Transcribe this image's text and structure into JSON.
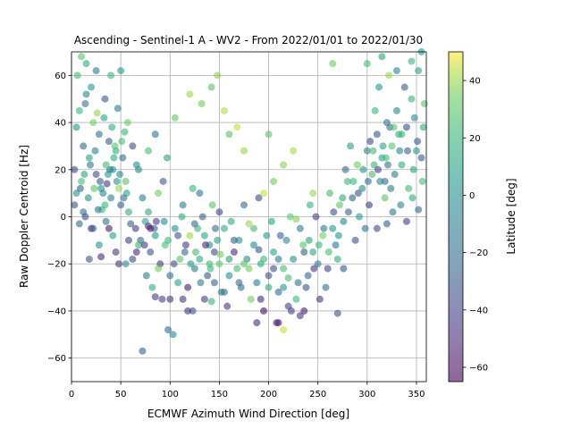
{
  "chart_data": {
    "type": "scatter",
    "title": "Ascending - Sentinel-1 A - WV2 - From 2022/01/01 to 2022/01/30",
    "xlabel": "ECMWF Azimuth Wind Direction [deg]",
    "ylabel": "Raw Doppler Centroid [Hz]",
    "xlim": [
      0,
      360
    ],
    "ylim": [
      -70,
      70
    ],
    "xticks": [
      0,
      50,
      100,
      150,
      200,
      250,
      300,
      350
    ],
    "yticks": [
      -60,
      -40,
      -20,
      0,
      20,
      40,
      60
    ],
    "grid": true,
    "colorbar": {
      "label": "Latitude [deg]",
      "range": [
        -65,
        50
      ],
      "ticks": [
        -60,
        -40,
        -20,
        0,
        20,
        40
      ],
      "colormap": "viridis"
    },
    "marker_alpha": 0.6,
    "points": [
      [
        5,
        38,
        5
      ],
      [
        12,
        30,
        -20
      ],
      [
        18,
        25,
        10
      ],
      [
        25,
        18,
        -35
      ],
      [
        30,
        12,
        0
      ],
      [
        35,
        22,
        25
      ],
      [
        40,
        8,
        -10
      ],
      [
        45,
        28,
        15
      ],
      [
        50,
        5,
        -25
      ],
      [
        55,
        15,
        30
      ],
      [
        8,
        45,
        20
      ],
      [
        15,
        52,
        -5
      ],
      [
        22,
        40,
        35
      ],
      [
        28,
        35,
        -15
      ],
      [
        33,
        42,
        10
      ],
      [
        38,
        32,
        -30
      ],
      [
        42,
        20,
        5
      ],
      [
        48,
        12,
        40
      ],
      [
        52,
        25,
        -20
      ],
      [
        58,
        2,
        15
      ],
      [
        3,
        20,
        -40
      ],
      [
        10,
        15,
        25
      ],
      [
        17,
        8,
        0
      ],
      [
        24,
        28,
        -10
      ],
      [
        31,
        3,
        20
      ],
      [
        36,
        14,
        -45
      ],
      [
        44,
        30,
        30
      ],
      [
        49,
        18,
        -5
      ],
      [
        56,
        10,
        10
      ],
      [
        60,
        -3,
        -25
      ],
      [
        6,
        60,
        25
      ],
      [
        14,
        48,
        -15
      ],
      [
        20,
        55,
        5
      ],
      [
        26,
        44,
        40
      ],
      [
        34,
        50,
        -30
      ],
      [
        41,
        38,
        15
      ],
      [
        47,
        46,
        -10
      ],
      [
        54,
        36,
        20
      ],
      [
        62,
        30,
        -35
      ],
      [
        66,
        22,
        0
      ],
      [
        65,
        -5,
        -40
      ],
      [
        70,
        -10,
        -20
      ],
      [
        75,
        -2,
        10
      ],
      [
        80,
        -15,
        -30
      ],
      [
        85,
        -8,
        5
      ],
      [
        90,
        -20,
        -45
      ],
      [
        95,
        -12,
        25
      ],
      [
        100,
        -25,
        -15
      ],
      [
        105,
        -5,
        0
      ],
      [
        110,
        -18,
        30
      ],
      [
        72,
        8,
        -10
      ],
      [
        78,
        2,
        15
      ],
      [
        84,
        -5,
        -25
      ],
      [
        88,
        10,
        35
      ],
      [
        94,
        -2,
        -5
      ],
      [
        98,
        -10,
        20
      ],
      [
        104,
        -20,
        -35
      ],
      [
        108,
        -28,
        10
      ],
      [
        115,
        -15,
        -20
      ],
      [
        120,
        -8,
        40
      ],
      [
        118,
        -30,
        -55
      ],
      [
        125,
        -22,
        -10
      ],
      [
        130,
        -18,
        15
      ],
      [
        135,
        -35,
        -40
      ],
      [
        140,
        -12,
        5
      ],
      [
        145,
        -28,
        -25
      ],
      [
        150,
        -20,
        30
      ],
      [
        155,
        -32,
        -15
      ],
      [
        160,
        -25,
        0
      ],
      [
        165,
        -15,
        -50
      ],
      [
        128,
        -5,
        20
      ],
      [
        138,
        -25,
        -30
      ],
      [
        148,
        -10,
        10
      ],
      [
        158,
        -38,
        -45
      ],
      [
        168,
        -22,
        25
      ],
      [
        172,
        -30,
        -20
      ],
      [
        178,
        -18,
        -5
      ],
      [
        182,
        -35,
        35
      ],
      [
        188,
        -28,
        -10
      ],
      [
        192,
        -20,
        15
      ],
      [
        195,
        -40,
        -60
      ],
      [
        200,
        -25,
        -35
      ],
      [
        205,
        -15,
        10
      ],
      [
        210,
        -32,
        -20
      ],
      [
        215,
        -22,
        25
      ],
      [
        220,
        -38,
        -40
      ],
      [
        225,
        -18,
        0
      ],
      [
        230,
        -28,
        -15
      ],
      [
        235,
        -12,
        30
      ],
      [
        240,
        -25,
        -25
      ],
      [
        198,
        -8,
        5
      ],
      [
        208,
        -45,
        -50
      ],
      [
        218,
        -10,
        -5
      ],
      [
        228,
        -35,
        20
      ],
      [
        238,
        -30,
        -30
      ],
      [
        245,
        -15,
        15
      ],
      [
        250,
        -20,
        -10
      ],
      [
        255,
        -8,
        35
      ],
      [
        260,
        -22,
        -40
      ],
      [
        265,
        -5,
        5
      ],
      [
        258,
        -30,
        -20
      ],
      [
        262,
        10,
        25
      ],
      [
        268,
        -12,
        -15
      ],
      [
        272,
        5,
        30
      ],
      [
        276,
        -2,
        -5
      ],
      [
        280,
        15,
        20
      ],
      [
        285,
        8,
        -25
      ],
      [
        290,
        22,
        35
      ],
      [
        295,
        12,
        0
      ],
      [
        300,
        28,
        -10
      ],
      [
        305,
        18,
        25
      ],
      [
        310,
        35,
        -30
      ],
      [
        315,
        25,
        10
      ],
      [
        320,
        40,
        -15
      ],
      [
        325,
        30,
        30
      ],
      [
        330,
        45,
        -5
      ],
      [
        335,
        22,
        15
      ],
      [
        340,
        38,
        -35
      ],
      [
        345,
        50,
        20
      ],
      [
        350,
        28,
        0
      ],
      [
        302,
        5,
        -40
      ],
      [
        308,
        45,
        20
      ],
      [
        312,
        55,
        5
      ],
      [
        318,
        15,
        -20
      ],
      [
        322,
        60,
        40
      ],
      [
        328,
        18,
        -10
      ],
      [
        332,
        35,
        15
      ],
      [
        338,
        55,
        -25
      ],
      [
        342,
        12,
        25
      ],
      [
        348,
        42,
        -5
      ],
      [
        352,
        62,
        10
      ],
      [
        355,
        25,
        -30
      ],
      [
        358,
        48,
        30
      ],
      [
        298,
        -5,
        -15
      ],
      [
        292,
        0,
        5
      ],
      [
        288,
        -10,
        -35
      ],
      [
        283,
        30,
        10
      ],
      [
        278,
        20,
        -20
      ],
      [
        270,
        -18,
        15
      ],
      [
        252,
        -35,
        -45
      ],
      [
        20,
        -5,
        -50
      ],
      [
        18,
        -18,
        -30
      ],
      [
        28,
        -12,
        5
      ],
      [
        35,
        -2,
        -20
      ],
      [
        42,
        -8,
        10
      ],
      [
        12,
        2,
        -15
      ],
      [
        55,
        -20,
        0
      ],
      [
        62,
        -18,
        -35
      ],
      [
        68,
        -12,
        20
      ],
      [
        76,
        -25,
        -10
      ],
      [
        82,
        -30,
        15
      ],
      [
        92,
        -35,
        -40
      ],
      [
        98,
        -48,
        -20
      ],
      [
        103,
        -50,
        -5
      ],
      [
        72,
        -57,
        -25
      ],
      [
        88,
        -22,
        35
      ],
      [
        113,
        -35,
        -45
      ],
      [
        123,
        -40,
        -30
      ],
      [
        142,
        -36,
        20
      ],
      [
        152,
        -32,
        -15
      ],
      [
        170,
        -10,
        0
      ],
      [
        175,
        5,
        -20
      ],
      [
        185,
        -5,
        25
      ],
      [
        190,
        8,
        -35
      ],
      [
        203,
        -2,
        10
      ],
      [
        212,
        -8,
        -25
      ],
      [
        222,
        0,
        30
      ],
      [
        232,
        -5,
        -10
      ],
      [
        242,
        5,
        20
      ],
      [
        248,
        0,
        -40
      ],
      [
        162,
        -2,
        15
      ],
      [
        133,
        0,
        -25
      ],
      [
        143,
        5,
        30
      ],
      [
        113,
        5,
        -10
      ],
      [
        123,
        12,
        20
      ],
      [
        93,
        15,
        -30
      ],
      [
        97,
        25,
        10
      ],
      [
        85,
        35,
        -15
      ],
      [
        78,
        28,
        25
      ],
      [
        68,
        20,
        -5
      ],
      [
        15,
        65,
        15
      ],
      [
        25,
        62,
        -10
      ],
      [
        40,
        60,
        20
      ],
      [
        50,
        62,
        5
      ],
      [
        10,
        68,
        30
      ],
      [
        300,
        65,
        25
      ],
      [
        315,
        68,
        10
      ],
      [
        330,
        62,
        -5
      ],
      [
        345,
        66,
        20
      ],
      [
        355,
        70,
        5
      ],
      [
        120,
        52,
        40
      ],
      [
        132,
        48,
        35
      ],
      [
        142,
        55,
        30
      ],
      [
        148,
        60,
        38
      ],
      [
        155,
        45,
        42
      ],
      [
        160,
        35,
        28
      ],
      [
        105,
        42,
        32
      ],
      [
        168,
        38,
        45
      ],
      [
        175,
        28,
        40
      ],
      [
        265,
        65,
        35
      ],
      [
        200,
        35,
        30
      ],
      [
        215,
        22,
        38
      ],
      [
        225,
        28,
        42
      ],
      [
        205,
        15,
        35
      ],
      [
        228,
        -1,
        38
      ],
      [
        180,
        -3,
        40
      ],
      [
        195,
        10,
        44
      ],
      [
        245,
        10,
        40
      ],
      [
        210,
        -45,
        -55
      ],
      [
        215,
        -48,
        45
      ],
      [
        188,
        -45,
        -50
      ],
      [
        232,
        -42,
        -45
      ],
      [
        236,
        -40,
        -55
      ],
      [
        270,
        -41,
        -35
      ],
      [
        276,
        -22,
        -30
      ],
      [
        223,
        -40,
        -40
      ],
      [
        192,
        -35,
        -50
      ],
      [
        118,
        -40,
        -45
      ],
      [
        100,
        -35,
        -45
      ],
      [
        85,
        -34,
        -40
      ],
      [
        78,
        -4,
        -50
      ],
      [
        45,
        -15,
        -45
      ],
      [
        38,
        -5,
        -55
      ],
      [
        30,
        -17,
        -50
      ],
      [
        48,
        -20,
        -45
      ],
      [
        58,
        -10,
        -40
      ],
      [
        66,
        -15,
        -50
      ],
      [
        74,
        -12,
        -45
      ],
      [
        80,
        -5,
        -55
      ],
      [
        86,
        -2,
        -40
      ],
      [
        3,
        5,
        -30
      ],
      [
        8,
        -3,
        -20
      ],
      [
        14,
        0,
        -35
      ],
      [
        22,
        -5,
        -25
      ],
      [
        27,
        3,
        -15
      ],
      [
        32,
        10,
        -5
      ],
      [
        37,
        18,
        5
      ],
      [
        43,
        25,
        15
      ],
      [
        51,
        32,
        25
      ],
      [
        57,
        40,
        35
      ],
      [
        5,
        10,
        0
      ],
      [
        9,
        12,
        -25
      ],
      [
        13,
        18,
        10
      ],
      [
        19,
        22,
        -15
      ],
      [
        23,
        12,
        30
      ],
      [
        29,
        15,
        -30
      ],
      [
        34,
        5,
        20
      ],
      [
        39,
        20,
        -10
      ],
      [
        46,
        15,
        5
      ],
      [
        53,
        8,
        -20
      ],
      [
        310,
        -5,
        -35
      ],
      [
        320,
        -3,
        -25
      ],
      [
        326,
        2,
        -15
      ],
      [
        334,
        5,
        -5
      ],
      [
        340,
        -2,
        -40
      ],
      [
        346,
        8,
        15
      ],
      [
        352,
        3,
        -20
      ],
      [
        356,
        15,
        25
      ],
      [
        318,
        8,
        30
      ],
      [
        324,
        12,
        -10
      ],
      [
        335,
        35,
        20
      ],
      [
        341,
        28,
        -25
      ],
      [
        347,
        20,
        10
      ],
      [
        351,
        32,
        -30
      ],
      [
        357,
        38,
        15
      ],
      [
        303,
        32,
        -35
      ],
      [
        307,
        22,
        20
      ],
      [
        313,
        15,
        -5
      ],
      [
        319,
        25,
        25
      ],
      [
        323,
        38,
        -20
      ],
      [
        125,
        -3,
        -20
      ],
      [
        135,
        -8,
        10
      ],
      [
        145,
        -15,
        -35
      ],
      [
        155,
        -5,
        15
      ],
      [
        165,
        -10,
        -25
      ],
      [
        175,
        -20,
        30
      ],
      [
        185,
        -12,
        -5
      ],
      [
        195,
        -18,
        20
      ],
      [
        205,
        -22,
        -35
      ],
      [
        215,
        -30,
        5
      ],
      [
        130,
        10,
        -15
      ],
      [
        140,
        -20,
        25
      ],
      [
        150,
        2,
        -40
      ],
      [
        160,
        -18,
        10
      ],
      [
        170,
        -28,
        -20
      ],
      [
        180,
        -22,
        35
      ],
      [
        190,
        -14,
        -30
      ],
      [
        200,
        -30,
        15
      ],
      [
        210,
        -18,
        -10
      ],
      [
        220,
        -26,
        25
      ],
      [
        108,
        -8,
        -30
      ],
      [
        112,
        0,
        15
      ],
      [
        116,
        -12,
        -45
      ],
      [
        121,
        -20,
        5
      ],
      [
        126,
        -15,
        25
      ],
      [
        131,
        -28,
        -10
      ],
      [
        136,
        -12,
        -50
      ],
      [
        141,
        -22,
        20
      ],
      [
        146,
        -5,
        -20
      ],
      [
        151,
        -16,
        35
      ],
      [
        236,
        -15,
        -30
      ],
      [
        241,
        -10,
        10
      ],
      [
        246,
        -22,
        -45
      ],
      [
        251,
        -12,
        20
      ],
      [
        256,
        -5,
        -15
      ],
      [
        261,
        -15,
        25
      ],
      [
        266,
        2,
        -35
      ],
      [
        271,
        -8,
        0
      ],
      [
        275,
        8,
        15
      ],
      [
        281,
        2,
        -25
      ],
      [
        286,
        15,
        20
      ],
      [
        291,
        10,
        -30
      ],
      [
        296,
        20,
        5
      ],
      [
        301,
        15,
        -20
      ],
      [
        306,
        28,
        25
      ],
      [
        311,
        20,
        -40
      ],
      [
        316,
        30,
        10
      ],
      [
        321,
        22,
        -15
      ],
      [
        327,
        38,
        30
      ],
      [
        333,
        28,
        -5
      ]
    ]
  }
}
